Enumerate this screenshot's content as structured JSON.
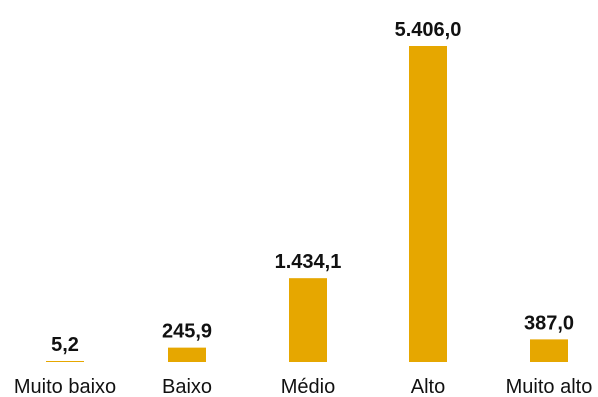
{
  "chart_data": {
    "type": "bar",
    "title": "",
    "xlabel": "",
    "ylabel": "",
    "categories": [
      "Muito baixo",
      "Baixo",
      "Médio",
      "Alto",
      "Muito alto"
    ],
    "values": [
      5.2,
      245.9,
      1434.1,
      5406.0,
      387.0
    ],
    "value_labels": [
      "5,2",
      "245,9",
      "1.434,1",
      "5.406,0",
      "387,0"
    ],
    "ylim": [
      0,
      5406.0
    ],
    "bar_color": "#E6A700",
    "grid": false,
    "legend": "none"
  }
}
